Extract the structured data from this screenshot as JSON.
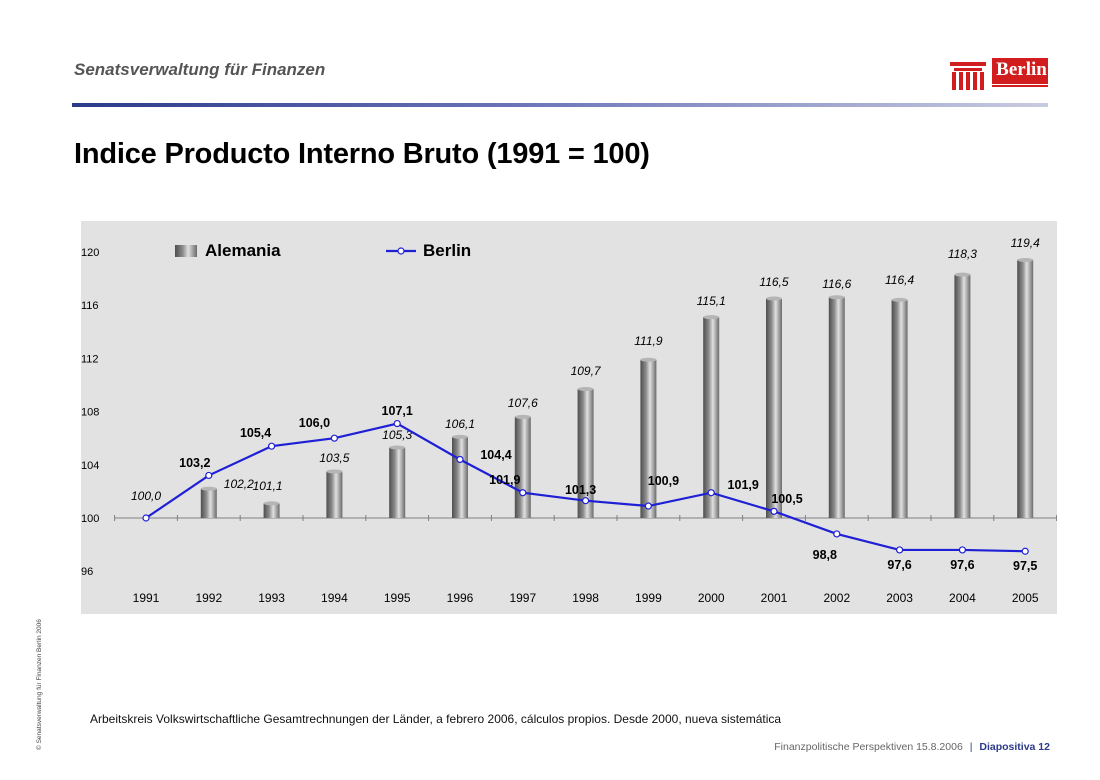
{
  "header": {
    "department": "Senatsverwaltung für Finanzen",
    "logo_text": "Berlin"
  },
  "title": "Indice Producto Interno Bruto (1991 = 100)",
  "footnote": "Arbeitskreis Volkswirtschaftliche Gesamtrechnungen der Länder, a febrero 2006, cálculos propios. Desde 2000, nueva sistemática",
  "side_copyright": "© Senatsverwaltung für Finanzen Berlin 2006",
  "footer": {
    "presentation": "Finanzpolitische Perspektiven 15.8.2006",
    "slide": "Diapositiva 12"
  },
  "colors": {
    "plot_background": "#e2e2e2",
    "bar_dark": "#5a5a5a",
    "bar_light": "#d6d6d6",
    "line": "#1f1fd6",
    "marker_fill": "#ffffff",
    "brand_red": "#d11d1d",
    "header_rule": "#2b3a8a"
  },
  "chart_data": {
    "type": "bar",
    "title": "",
    "categories": [
      "1991",
      "1992",
      "1993",
      "1994",
      "1995",
      "1996",
      "1997",
      "1998",
      "1999",
      "2000",
      "2001",
      "2002",
      "2003",
      "2004",
      "2005"
    ],
    "ylim": [
      96,
      120
    ],
    "yticks": [
      96,
      100,
      104,
      108,
      112,
      116,
      120
    ],
    "ytick_labels": [
      "96",
      "100",
      "104",
      "108",
      "112",
      "116",
      "120"
    ],
    "grid": false,
    "legend_position": "top-left",
    "series": [
      {
        "name": "Alemania",
        "type": "bar",
        "values": [
          100.0,
          102.2,
          101.1,
          103.5,
          105.3,
          106.1,
          107.6,
          109.7,
          111.9,
          115.1,
          116.5,
          116.6,
          116.4,
          118.3,
          119.4
        ],
        "labels": [
          "100,0",
          "102,2",
          "101,1",
          "103,5",
          "105,3",
          "106,1",
          "107,6",
          "109,7",
          "111,9",
          "115,1",
          "116,5",
          "116,6",
          "116,4",
          "118,3",
          "119,4"
        ]
      },
      {
        "name": "Berlin",
        "type": "line",
        "values": [
          100.0,
          103.2,
          105.4,
          106.0,
          107.1,
          104.4,
          101.9,
          101.3,
          100.9,
          101.9,
          100.5,
          98.8,
          97.6,
          97.6,
          97.5
        ],
        "labels": [
          "100,0",
          "103,2",
          "105,4",
          "106,0",
          "107,1",
          "104,4",
          "101,9",
          "101,3",
          "100,9",
          "101,9",
          "100,5",
          "98,8",
          "97,6",
          "97,6",
          "97,5"
        ]
      }
    ]
  }
}
